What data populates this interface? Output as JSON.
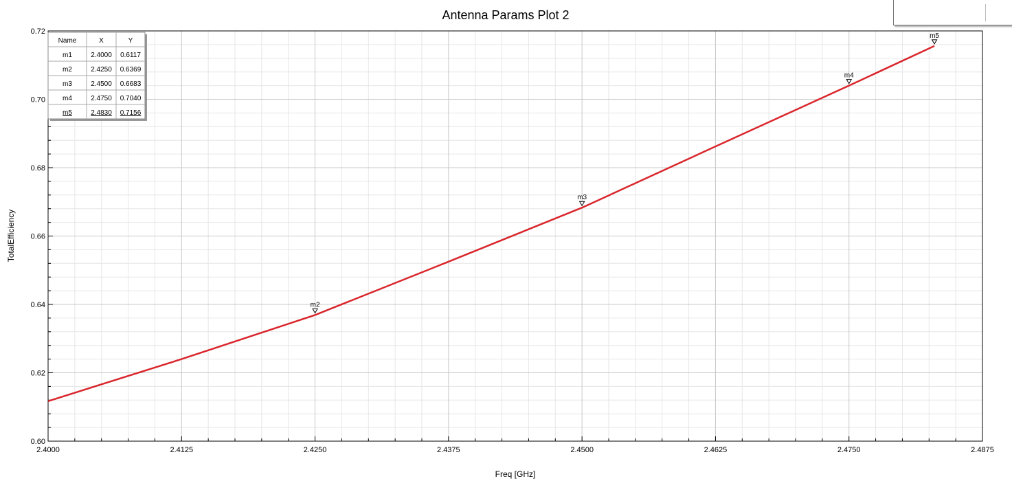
{
  "chart_data": {
    "type": "line",
    "title": "Antenna Params Plot 2",
    "xlabel": "Freq [GHz]",
    "ylabel": "TotalEfficiency",
    "xlim": [
      2.4,
      2.4875
    ],
    "ylim": [
      0.6,
      0.72
    ],
    "x_ticks": [
      "2.4000",
      "2.4125",
      "2.4250",
      "2.4375",
      "2.4500",
      "2.4625",
      "2.4750",
      "2.4875"
    ],
    "y_ticks": [
      "0.60",
      "0.62",
      "0.64",
      "0.66",
      "0.68",
      "0.70",
      "0.72"
    ],
    "grid": true,
    "series": [
      {
        "color": "#d9262c",
        "x": [
          2.4,
          2.4125,
          2.425,
          2.4375,
          2.45,
          2.4625,
          2.475,
          2.483
        ],
        "y": [
          0.6117,
          0.624,
          0.6369,
          0.6525,
          0.6683,
          0.6862,
          0.704,
          0.7156
        ]
      }
    ],
    "markers": {
      "headers": [
        "Name",
        "X",
        "Y"
      ],
      "rows": [
        {
          "name": "m1",
          "x": "2.4000",
          "y": "0.6117"
        },
        {
          "name": "m2",
          "x": "2.4250",
          "y": "0.6369"
        },
        {
          "name": "m3",
          "x": "2.4500",
          "y": "0.6683"
        },
        {
          "name": "m4",
          "x": "2.4750",
          "y": "0.7040"
        },
        {
          "name": "m5",
          "x": "2.4830",
          "y": "0.7156"
        }
      ],
      "shown_on_plot": [
        "m2",
        "m3",
        "m4",
        "m5"
      ]
    }
  }
}
